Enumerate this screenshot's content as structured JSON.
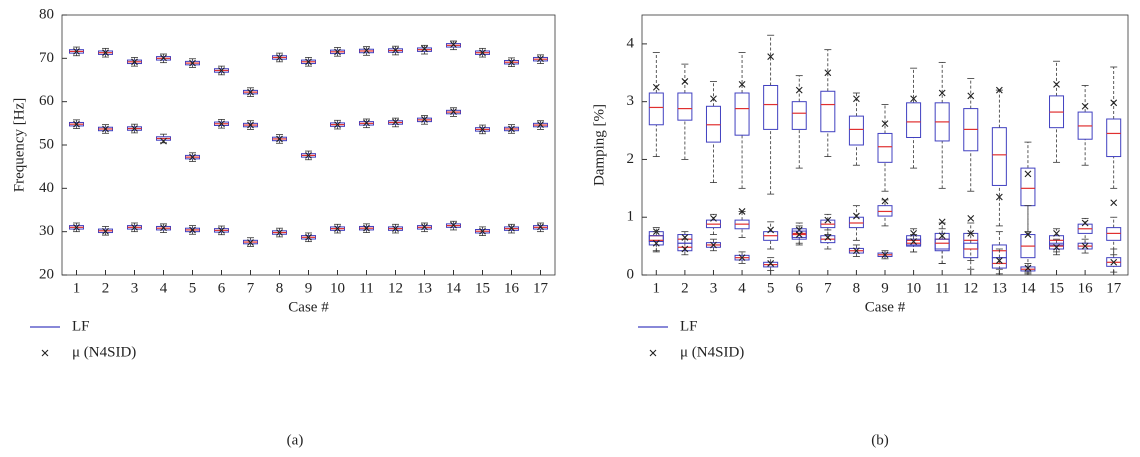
{
  "chart_data": [
    {
      "type": "box",
      "subcaption": "(a)",
      "xlabel": "Case #",
      "ylabel": "Frequency [Hz]",
      "categories": [
        "1",
        "2",
        "3",
        "4",
        "5",
        "6",
        "7",
        "8",
        "9",
        "10",
        "11",
        "12",
        "13",
        "14",
        "15",
        "16",
        "17"
      ],
      "ylim": [
        20,
        80
      ],
      "yticks": [
        20,
        30,
        40,
        50,
        60,
        70,
        80
      ],
      "box_color": "#4040c0",
      "median_color": "#e03030",
      "mu_color": "#222222",
      "legend_labels": [
        "LF",
        "μ (N4SID)"
      ],
      "series": [
        {
          "median": [
            31,
            30.2,
            31,
            30.8,
            30.4,
            30.3,
            27.6,
            29.8,
            28.7,
            30.7,
            30.8,
            30.7,
            31,
            31.4,
            30.1,
            30.7,
            31
          ],
          "q1": [
            30.6,
            29.8,
            30.6,
            30.4,
            30,
            29.9,
            27.2,
            29.4,
            28.3,
            30.3,
            30.4,
            30.3,
            30.6,
            31,
            29.7,
            30.3,
            30.6
          ],
          "q3": [
            31.4,
            30.6,
            31.4,
            31.2,
            30.8,
            30.7,
            28,
            30.2,
            29.1,
            31.1,
            31.2,
            31.1,
            31.4,
            31.8,
            30.5,
            31.1,
            31.4
          ],
          "whisker_low": [
            30,
            29.2,
            30,
            29.8,
            29.4,
            29.3,
            26.6,
            28.8,
            27.7,
            29.7,
            29.8,
            29.7,
            30,
            30.4,
            29.1,
            29.7,
            30
          ],
          "whisker_high": [
            32,
            31.2,
            32,
            31.8,
            31.4,
            31.3,
            28.6,
            30.8,
            29.7,
            31.7,
            31.8,
            31.7,
            32,
            32.4,
            31.1,
            31.7,
            32
          ],
          "mu": [
            31,
            30.1,
            31,
            30.9,
            30.4,
            30.3,
            27.5,
            29.8,
            28.7,
            30.7,
            30.8,
            30.7,
            31.1,
            31.5,
            30.1,
            30.8,
            31.1
          ]
        },
        {
          "median": [
            54.8,
            53.7,
            53.8,
            51.5,
            47.2,
            54.9,
            54.6,
            51.4,
            47.6,
            54.7,
            55,
            55.2,
            55.8,
            57.6,
            53.6,
            53.7,
            54.6
          ],
          "q1": [
            54.4,
            53.3,
            53.4,
            51.1,
            46.8,
            54.5,
            54.2,
            51,
            47.2,
            54.3,
            54.6,
            54.8,
            55.4,
            57.2,
            53.2,
            53.3,
            54.2
          ],
          "q3": [
            55.2,
            54.1,
            54.2,
            51.9,
            47.6,
            55.3,
            55,
            51.8,
            48,
            55.1,
            55.4,
            55.6,
            56.2,
            58,
            54,
            54.1,
            55
          ],
          "whisker_low": [
            53.8,
            52.7,
            52.8,
            50.5,
            46.2,
            53.9,
            53.6,
            50.4,
            46.6,
            53.7,
            54,
            54.2,
            54.8,
            56.6,
            52.6,
            52.7,
            53.6
          ],
          "whisker_high": [
            55.8,
            54.7,
            54.8,
            52.5,
            48.2,
            55.9,
            55.6,
            52.4,
            48.6,
            55.7,
            56,
            56.2,
            56.8,
            58.6,
            54.6,
            54.7,
            55.6
          ],
          "mu": [
            54.8,
            53.7,
            53.8,
            50.9,
            47.2,
            54.9,
            54.6,
            51.4,
            47.6,
            54.7,
            55.1,
            55.3,
            55.9,
            57.7,
            53.6,
            53.7,
            54.7
          ]
        },
        {
          "median": [
            71.6,
            71.3,
            69.2,
            70,
            68.9,
            67.2,
            62.2,
            70.2,
            69.2,
            71.5,
            71.7,
            71.8,
            72,
            73,
            71.3,
            69.1,
            69.8
          ],
          "q1": [
            71.2,
            70.9,
            68.8,
            69.6,
            68.5,
            66.8,
            61.8,
            69.8,
            68.8,
            71.1,
            71.3,
            71.4,
            71.6,
            72.6,
            70.9,
            68.7,
            69.4
          ],
          "q3": [
            72,
            71.7,
            69.6,
            70.4,
            69.3,
            67.6,
            62.6,
            70.6,
            69.6,
            71.9,
            72.1,
            72.2,
            72.4,
            73.4,
            71.7,
            69.5,
            70.2
          ],
          "whisker_low": [
            70.6,
            70.3,
            68.2,
            69,
            67.9,
            66.2,
            61.2,
            69.2,
            68.2,
            70.5,
            70.7,
            70.8,
            71,
            72,
            70.3,
            68.1,
            68.8
          ],
          "whisker_high": [
            72.6,
            72.3,
            70.2,
            71,
            69.9,
            68.2,
            63.2,
            71.2,
            70.2,
            72.5,
            72.7,
            72.8,
            73,
            74,
            72.3,
            70.1,
            70.8
          ],
          "mu": [
            71.6,
            71.3,
            69.2,
            70.1,
            68.9,
            67.2,
            62.2,
            70.2,
            69.2,
            71.5,
            71.8,
            71.9,
            72.2,
            73.2,
            71.3,
            69.1,
            69.9
          ]
        }
      ]
    },
    {
      "type": "box",
      "subcaption": "(b)",
      "xlabel": "Case #",
      "ylabel": "Damping [%]",
      "categories": [
        "1",
        "2",
        "3",
        "4",
        "5",
        "6",
        "7",
        "8",
        "9",
        "10",
        "11",
        "12",
        "13",
        "14",
        "15",
        "16",
        "17"
      ],
      "ylim": [
        0,
        4.5
      ],
      "yticks": [
        0,
        1,
        2,
        3,
        4
      ],
      "box_color": "#4040c0",
      "median_color": "#e03030",
      "mu_color": "#222222",
      "legend_labels": [
        "LF",
        "μ (N4SID)"
      ],
      "series": [
        {
          "median": [
            2.9,
            2.88,
            2.6,
            2.88,
            2.95,
            2.8,
            2.95,
            2.52,
            2.22,
            2.65,
            2.65,
            2.52,
            2.08,
            1.5,
            2.82,
            2.58,
            2.45
          ],
          "q1": [
            2.6,
            2.68,
            2.3,
            2.42,
            2.52,
            2.52,
            2.48,
            2.25,
            1.95,
            2.38,
            2.32,
            2.15,
            1.55,
            1.2,
            2.55,
            2.35,
            2.05
          ],
          "q3": [
            3.15,
            3.15,
            2.92,
            3.15,
            3.28,
            3,
            3.18,
            2.75,
            2.45,
            2.98,
            2.98,
            2.88,
            2.55,
            1.85,
            3.1,
            2.82,
            2.7
          ],
          "whisker_low": [
            2.05,
            2,
            1.6,
            1.5,
            1.4,
            1.85,
            2.05,
            1.9,
            1.45,
            1.85,
            1.5,
            1.45,
            0.85,
            0.75,
            1.95,
            1.9,
            1.5
          ],
          "whisker_high": [
            3.85,
            3.65,
            3.35,
            3.85,
            4.15,
            3.45,
            3.9,
            3.15,
            2.95,
            3.58,
            3.68,
            3.4,
            3.2,
            2.3,
            3.7,
            3.28,
            3.6
          ],
          "mu": [
            3.25,
            3.35,
            3.05,
            3.3,
            3.78,
            3.2,
            3.5,
            3.05,
            2.62,
            3.05,
            3.15,
            3.1,
            3.2,
            1.75,
            3.3,
            2.92,
            2.98
          ]
        },
        {
          "median": [
            0.68,
            0.62,
            0.88,
            0.88,
            0.68,
            0.72,
            0.88,
            0.9,
            1.1,
            0.6,
            0.62,
            0.6,
            0.42,
            0.5,
            0.6,
            0.8,
            0.72
          ],
          "q1": [
            0.58,
            0.55,
            0.82,
            0.8,
            0.6,
            0.65,
            0.82,
            0.82,
            1.02,
            0.52,
            0.45,
            0.45,
            0.3,
            0.3,
            0.52,
            0.72,
            0.6
          ],
          "q3": [
            0.75,
            0.7,
            0.95,
            0.95,
            0.75,
            0.8,
            0.95,
            1,
            1.2,
            0.68,
            0.72,
            0.72,
            0.52,
            0.7,
            0.68,
            0.88,
            0.82
          ],
          "whisker_low": [
            0.42,
            0.42,
            0.7,
            0.65,
            0.45,
            0.52,
            0.7,
            0.6,
            0.85,
            0.4,
            0.2,
            0.25,
            0.1,
            0.05,
            0.4,
            0.55,
            0.35
          ],
          "whisker_high": [
            0.82,
            0.75,
            1.05,
            1.1,
            0.92,
            0.9,
            1.05,
            1.2,
            1.3,
            0.8,
            0.9,
            0.9,
            0.75,
            1.2,
            0.8,
            0.98,
            1
          ],
          "mu": [
            0.75,
            0.65,
            0.98,
            1.1,
            0.78,
            0.78,
            0.95,
            1.02,
            1.28,
            0.72,
            0.92,
            0.98,
            1.35,
            0.7,
            0.72,
            0.9,
            1.25
          ]
        },
        {
          "median": [
            0.6,
            0.48,
            0.52,
            0.3,
            0.18,
            0.7,
            0.62,
            0.42,
            0.35,
            0.55,
            0.55,
            0.45,
            0.2,
            0.1,
            0.5,
            0.5,
            0.22
          ],
          "q1": [
            0.52,
            0.42,
            0.48,
            0.26,
            0.14,
            0.62,
            0.56,
            0.38,
            0.32,
            0.5,
            0.42,
            0.3,
            0.12,
            0.07,
            0.45,
            0.45,
            0.15
          ],
          "q3": [
            0.68,
            0.55,
            0.56,
            0.34,
            0.22,
            0.76,
            0.68,
            0.46,
            0.38,
            0.62,
            0.62,
            0.55,
            0.3,
            0.14,
            0.55,
            0.55,
            0.3
          ],
          "whisker_low": [
            0.4,
            0.35,
            0.42,
            0.2,
            0.08,
            0.55,
            0.45,
            0.32,
            0.28,
            0.4,
            0.2,
            0.1,
            0.02,
            0.02,
            0.35,
            0.38,
            0.05
          ],
          "whisker_high": [
            0.75,
            0.62,
            0.62,
            0.4,
            0.3,
            0.85,
            0.78,
            0.52,
            0.42,
            0.7,
            0.8,
            0.72,
            0.45,
            0.2,
            0.62,
            0.62,
            0.45
          ],
          "mu": [
            0.55,
            0.45,
            0.52,
            0.3,
            0.2,
            0.7,
            0.65,
            0.42,
            0.35,
            0.58,
            0.68,
            0.72,
            0.25,
            0.12,
            0.48,
            0.5,
            0.22
          ]
        }
      ]
    }
  ]
}
